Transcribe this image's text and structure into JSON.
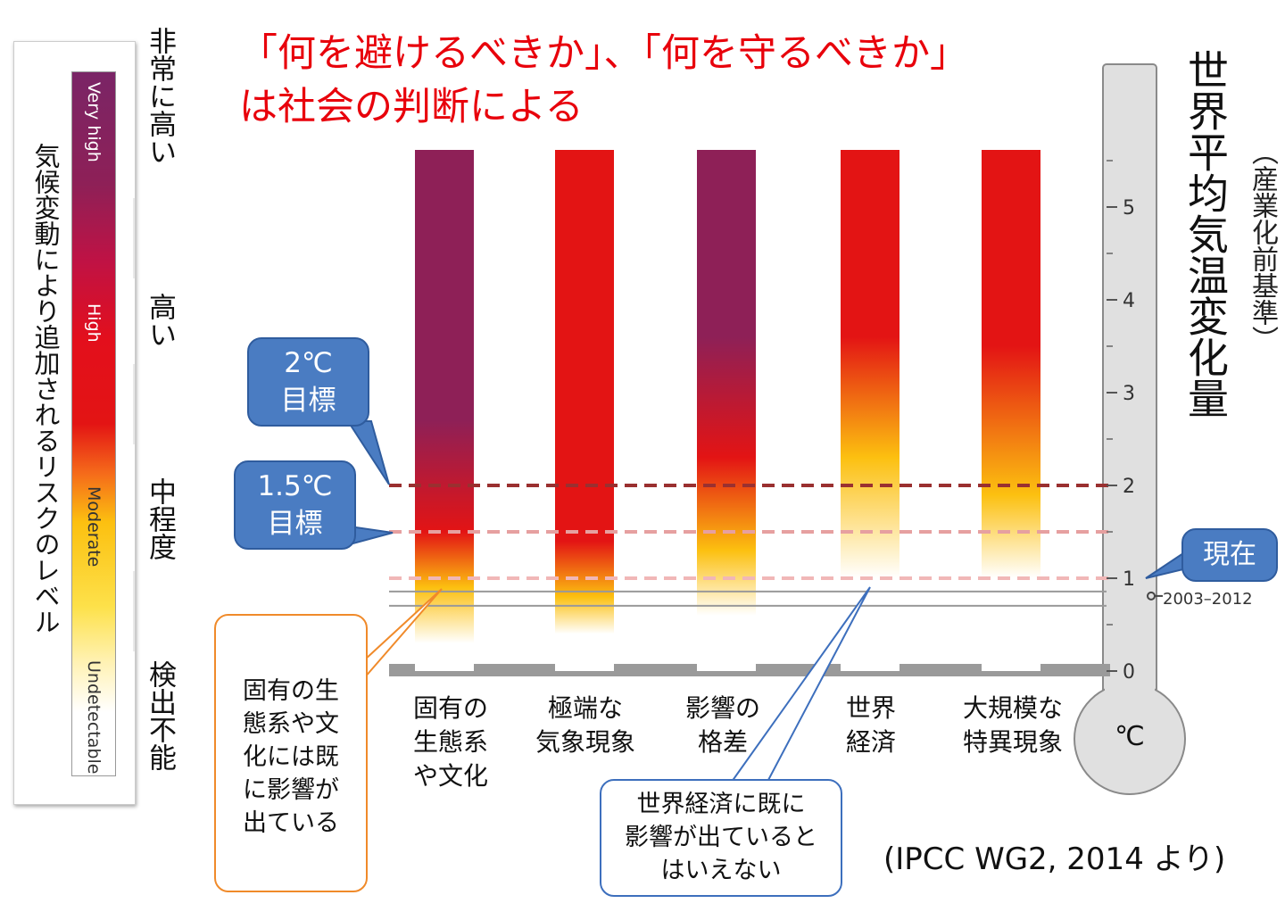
{
  "title": {
    "line1": "「何を避けるべきか」、「何を守るべきか」",
    "line2": "は社会の判断による"
  },
  "legend": {
    "title": "気候変動により追加されるリスクのレベル",
    "levels_en": [
      "Very high",
      "High",
      "Moderate",
      "Undetectable"
    ],
    "levels_ja": [
      "非常に高い",
      "高い",
      "中程度",
      "検出不能"
    ],
    "colors": {
      "very_high": "#8e2057",
      "high": "#e31414",
      "moderate": "#fcc010",
      "undetectable": "#ffffff"
    }
  },
  "callouts": {
    "target_2": [
      "2℃",
      "目標"
    ],
    "target_15": [
      "1.5℃",
      "目標"
    ],
    "now": "現在",
    "ecosystems": [
      "固有の生",
      "態系や文",
      "化には既",
      "に影響が",
      "出ている"
    ],
    "economy": [
      "世界経済に既に",
      "影響が出ていると",
      "はいえない"
    ]
  },
  "thermometer": {
    "title": "世界平均気温変化量",
    "subtitle": "（産業化前基準）",
    "unit": "℃",
    "period_label": "2003–2012"
  },
  "source": "(IPCC WG2, 2014 より)",
  "chart_data": {
    "type": "bar",
    "categories": [
      [
        "固有の",
        "生態系",
        "や文化"
      ],
      [
        "極端な",
        "気象現象"
      ],
      [
        "影響の",
        "格差"
      ],
      [
        "世界",
        "経済"
      ],
      [
        "大規模な",
        "特異現象"
      ]
    ],
    "ylim": [
      0,
      5.8
    ],
    "yticks": [
      0,
      1,
      2,
      3,
      4,
      5
    ],
    "reference_lines": [
      {
        "value": 2.0,
        "label": "2℃目標",
        "color": "#9a3030"
      },
      {
        "value": 1.5,
        "label": "1.5℃目標",
        "color": "#e6a0a0"
      },
      {
        "value": 1.0,
        "label": "現在",
        "color": "#f1b7b7"
      }
    ],
    "recent_observed": 0.78,
    "recent_period": "2003–2012",
    "risk_transitions": [
      [
        {
          "t": 0.3,
          "level": "undetectable"
        },
        {
          "t": 0.9,
          "level": "moderate"
        },
        {
          "t": 1.5,
          "level": "high"
        },
        {
          "t": 2.7,
          "level": "very_high"
        }
      ],
      [
        {
          "t": 0.4,
          "level": "undetectable"
        },
        {
          "t": 0.8,
          "level": "moderate"
        },
        {
          "t": 1.4,
          "level": "high"
        },
        {
          "t": 5.8,
          "level": "high"
        }
      ],
      [
        {
          "t": 0.6,
          "level": "undetectable"
        },
        {
          "t": 1.3,
          "level": "moderate"
        },
        {
          "t": 2.3,
          "level": "high"
        },
        {
          "t": 3.6,
          "level": "very_high"
        }
      ],
      [
        {
          "t": 1.0,
          "level": "undetectable"
        },
        {
          "t": 2.3,
          "level": "moderate"
        },
        {
          "t": 3.6,
          "level": "high"
        },
        {
          "t": 5.8,
          "level": "high"
        }
      ],
      [
        {
          "t": 1.0,
          "level": "undetectable"
        },
        {
          "t": 1.9,
          "level": "moderate"
        },
        {
          "t": 3.5,
          "level": "high"
        },
        {
          "t": 5.8,
          "level": "high"
        }
      ]
    ]
  }
}
